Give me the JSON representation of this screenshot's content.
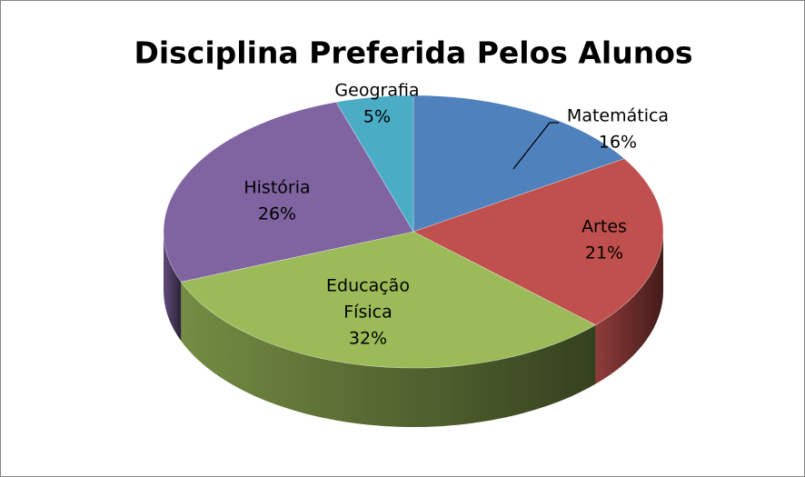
{
  "chart_data": {
    "type": "pie3d",
    "title": "Disciplina Preferida Pelos Alunos",
    "categories": [
      "Matemática",
      "Artes",
      "Educação Física",
      "História",
      "Geografia"
    ],
    "values": [
      16,
      21,
      32,
      26,
      5
    ],
    "value_labels": [
      "16%",
      "21%",
      "32%",
      "26%",
      "5%"
    ],
    "colors": [
      "#4f81bd",
      "#c0504d",
      "#9bbb59",
      "#8064a2",
      "#4bacc6"
    ]
  }
}
